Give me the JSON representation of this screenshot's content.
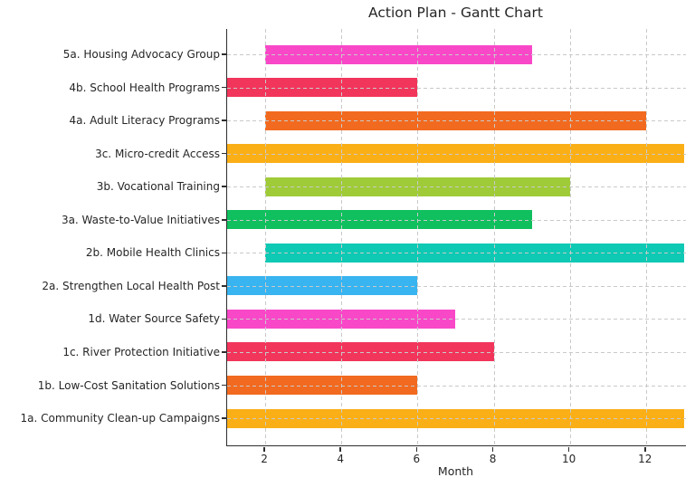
{
  "chart_data": {
    "type": "bar",
    "orientation": "horizontal",
    "title": "Action Plan - Gantt Chart",
    "xlabel": "Month",
    "xlim": [
      1,
      13.05
    ],
    "x_ticks": [
      "2",
      "4",
      "6",
      "8",
      "10",
      "12"
    ],
    "grid": "dashed, drawn over bars",
    "legend": "none",
    "tasks": [
      {
        "label": "5a. Housing Advocacy Group",
        "start_month": 2,
        "end_month": 9,
        "color": "#f848c8"
      },
      {
        "label": "4b. School Health Programs",
        "start_month": 1,
        "end_month": 6,
        "color": "#f2355b"
      },
      {
        "label": "4a. Adult Literacy Programs",
        "start_month": 2,
        "end_month": 12,
        "color": "#f26a1f"
      },
      {
        "label": "3c. Micro-credit Access",
        "start_month": 1,
        "end_month": 13,
        "color": "#fbaf16"
      },
      {
        "label": "3b. Vocational Training",
        "start_month": 2,
        "end_month": 10,
        "color": "#9fcb38"
      },
      {
        "label": "3a. Waste-to-Value Initiatives",
        "start_month": 1,
        "end_month": 9,
        "color": "#10bf5e"
      },
      {
        "label": "2b. Mobile Health Clinics",
        "start_month": 2,
        "end_month": 13,
        "color": "#0ec9b4"
      },
      {
        "label": "2a. Strengthen Local Health Post",
        "start_month": 1,
        "end_month": 6,
        "color": "#38b4f0"
      },
      {
        "label": "1d. Water Source Safety",
        "start_month": 1,
        "end_month": 7,
        "color": "#f848c8"
      },
      {
        "label": "1c. River Protection Initiative",
        "start_month": 1,
        "end_month": 8,
        "color": "#f2355b"
      },
      {
        "label": "1b. Low-Cost Sanitation Solutions",
        "start_month": 1,
        "end_month": 6,
        "color": "#f26a1f"
      },
      {
        "label": "1a. Community Clean-up Campaigns",
        "start_month": 1,
        "end_month": 13,
        "color": "#fbaf16"
      }
    ]
  }
}
